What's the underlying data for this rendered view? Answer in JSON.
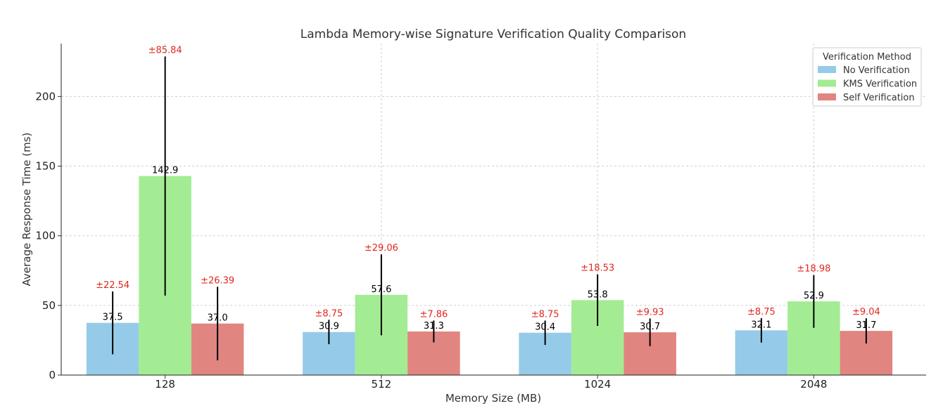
{
  "chart_data": {
    "type": "bar",
    "title": "Lambda Memory-wise Signature Verification Quality Comparison",
    "xlabel": "Memory Size (MB)",
    "ylabel": "Average Response Time (ms)",
    "categories": [
      "128",
      "512",
      "1024",
      "2048"
    ],
    "ylim": [
      0,
      238
    ],
    "yticks": [
      0,
      50,
      100,
      150,
      200
    ],
    "grid": true,
    "legend": {
      "title": "Verification Method",
      "placement": "top-right"
    },
    "series": [
      {
        "name": "No Verification",
        "color": "#95cbe8",
        "values": [
          37.5,
          30.9,
          30.4,
          32.1
        ],
        "value_labels": [
          "37.5",
          "30.9",
          "30.4",
          "32.1"
        ],
        "errors": [
          22.54,
          8.75,
          8.75,
          8.75
        ],
        "error_labels": [
          "±22.54",
          "±8.75",
          "±8.75",
          "±8.75"
        ]
      },
      {
        "name": "KMS Verification",
        "color": "#a3ec94",
        "values": [
          142.9,
          57.6,
          53.8,
          52.9
        ],
        "value_labels": [
          "142.9",
          "57.6",
          "53.8",
          "52.9"
        ],
        "errors": [
          85.84,
          29.06,
          18.53,
          18.98
        ],
        "error_labels": [
          "±85.84",
          "±29.06",
          "±18.53",
          "±18.98"
        ]
      },
      {
        "name": "Self Verification",
        "color": "#e08580",
        "values": [
          37.0,
          31.3,
          30.7,
          31.7
        ],
        "value_labels": [
          "37.0",
          "31.3",
          "30.7",
          "31.7"
        ],
        "errors": [
          26.39,
          7.86,
          9.93,
          9.04
        ],
        "error_labels": [
          "±26.39",
          "±7.86",
          "±9.93",
          "±9.04"
        ]
      }
    ],
    "error_label_color": "#e0261e"
  }
}
